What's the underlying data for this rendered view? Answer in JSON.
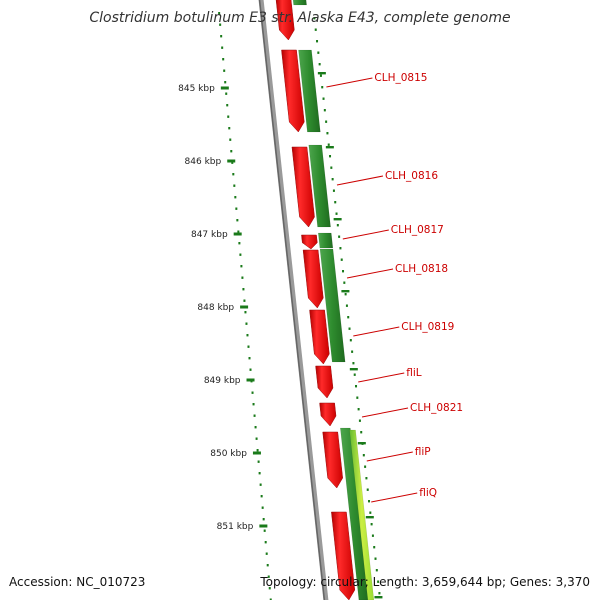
{
  "title": "Clostridium botulinum E3 str. Alaska E43, complete genome",
  "footer": {
    "accession": "Accession: NC_010723",
    "summary": "Topology: circular; Length: 3,659,644 bp; Genes: 3,370"
  },
  "colors": {
    "backbone": "#808080",
    "forward_gene": "#ee1111",
    "reverse_gene": "#2e8b2e",
    "reverse_gene_light": "#99dd33",
    "gene_label": "#cc0000",
    "tick": "#1a7a1a",
    "tick_label": "#222222"
  },
  "axis": {
    "unit": "kbp",
    "ticks": [
      {
        "value": 845,
        "label": "845 kbp"
      },
      {
        "value": 846,
        "label": "846 kbp"
      },
      {
        "value": 847,
        "label": "847 kbp"
      },
      {
        "value": 848,
        "label": "848 kbp"
      },
      {
        "value": 849,
        "label": "849 kbp"
      },
      {
        "value": 850,
        "label": "850 kbp"
      },
      {
        "value": 851,
        "label": "851 kbp"
      }
    ]
  },
  "genes": [
    {
      "name": "CLH_0815"
    },
    {
      "name": "CLH_0816"
    },
    {
      "name": "CLH_0817"
    },
    {
      "name": "CLH_0818"
    },
    {
      "name": "CLH_0819"
    },
    {
      "name": "fliL"
    },
    {
      "name": "CLH_0821"
    },
    {
      "name": "fliP"
    },
    {
      "name": "fliQ"
    }
  ]
}
